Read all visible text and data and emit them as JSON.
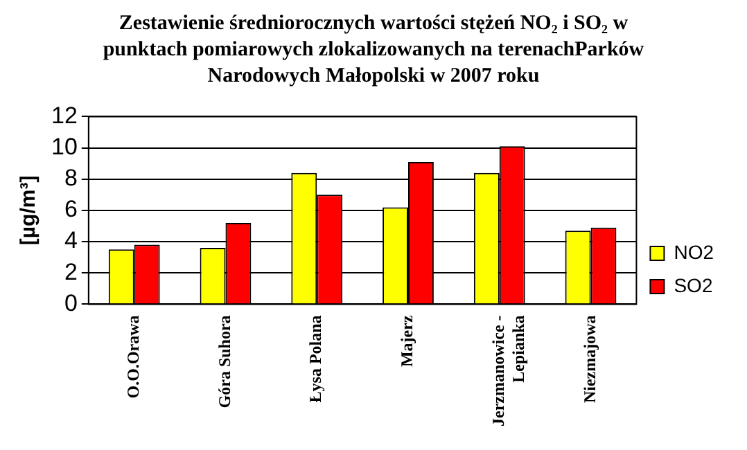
{
  "chart_data": {
    "type": "bar",
    "title": "Zestawienie średniorocznych wartości stężeń NO₂ i SO₂ w punktach pomiarowych zlokalizowanych na terenachParków Narodowych Małopolski w 2007 roku",
    "ylabel": "[µg/m³]",
    "categories": [
      "O.O.Orawa",
      "Góra Suhora",
      "Łysa Polana",
      "Majerz",
      "Jerzmanowice - Lepianka",
      "Niezmajowa"
    ],
    "series": [
      {
        "name": "NO2",
        "color": "#ffff00",
        "values": [
          3.5,
          3.6,
          8.4,
          6.2,
          8.4,
          4.7
        ]
      },
      {
        "name": "SO2",
        "color": "#ff0000",
        "values": [
          3.8,
          5.2,
          7.0,
          9.1,
          10.1,
          4.9
        ]
      }
    ],
    "ylim": [
      0,
      12
    ],
    "yticks": [
      0,
      2,
      4,
      6,
      8,
      10,
      12
    ],
    "grid": "y",
    "legend": "right"
  }
}
